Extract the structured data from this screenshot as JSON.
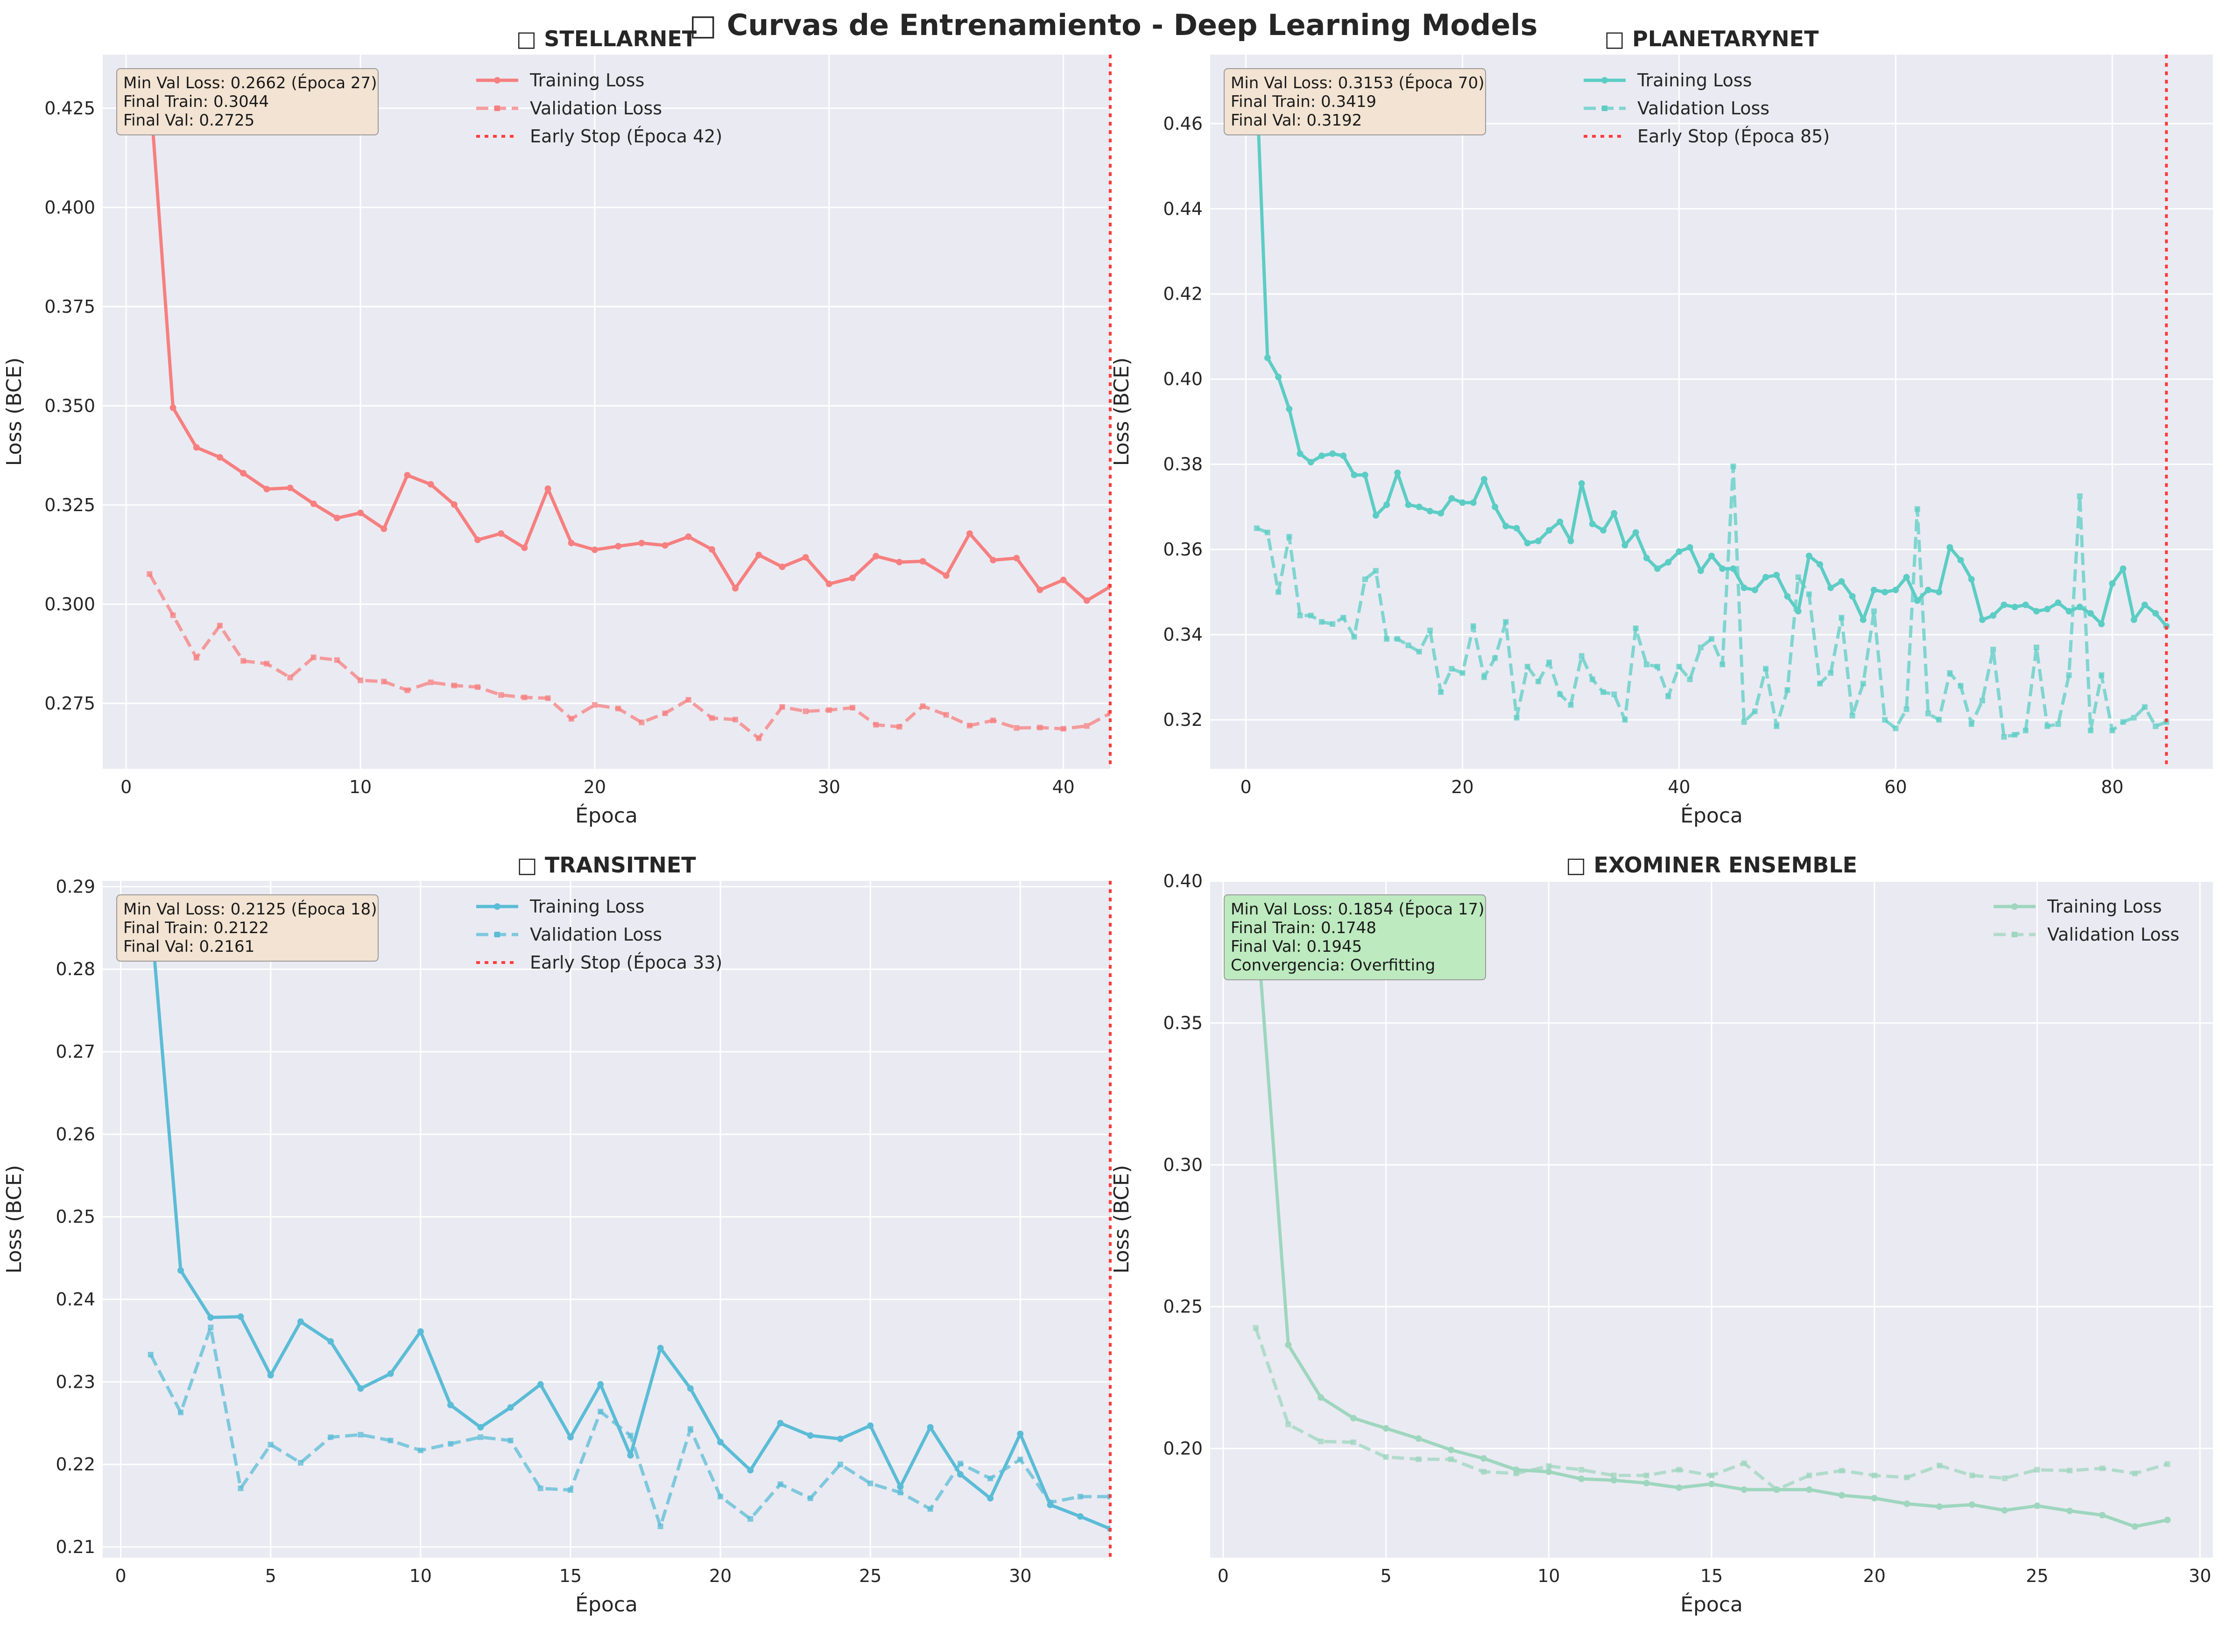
{
  "suptitle": "□ Curvas de Entrenamiento - Deep Learning Models",
  "chart_data": [
    {
      "type": "line",
      "title": "□ STELLARNET",
      "xlabel": "Época",
      "ylabel": "Loss (BCE)",
      "color": "#f77f7f",
      "xlim": [
        -1,
        42
      ],
      "ylim": [
        0.2585,
        0.4385
      ],
      "xticks": [
        0,
        10,
        20,
        30,
        40
      ],
      "xtick_labels": [
        "0",
        "10",
        "20",
        "30",
        "40"
      ],
      "yticks": [
        0.275,
        0.3,
        0.325,
        0.35,
        0.375,
        0.4,
        0.425
      ],
      "ytick_labels": [
        "0.275",
        "0.300",
        "0.325",
        "0.350",
        "0.375",
        "0.400",
        "0.425"
      ],
      "series": [
        {
          "name": "Training Loss",
          "x": [
            1,
            2,
            3,
            4,
            5,
            6,
            7,
            8,
            9,
            10,
            11,
            12,
            13,
            14,
            15,
            16,
            17,
            18,
            19,
            20,
            21,
            22,
            23,
            24,
            25,
            26,
            27,
            28,
            29,
            30,
            31,
            32,
            33,
            34,
            35,
            36,
            37,
            38,
            39,
            40,
            41,
            42
          ],
          "values": [
            0.431,
            0.3495,
            0.3395,
            0.337,
            0.333,
            0.329,
            0.3293,
            0.3253,
            0.3217,
            0.323,
            0.319,
            0.3325,
            0.3302,
            0.3251,
            0.3162,
            0.3178,
            0.3142,
            0.3291,
            0.3154,
            0.3137,
            0.3146,
            0.3154,
            0.3148,
            0.317,
            0.3138,
            0.304,
            0.3124,
            0.3094,
            0.3118,
            0.3051,
            0.3066,
            0.3121,
            0.3106,
            0.3108,
            0.3072,
            0.3178,
            0.3111,
            0.3116,
            0.3036,
            0.3061,
            0.3009,
            0.3044
          ]
        },
        {
          "name": "Validation Loss",
          "x": [
            1,
            2,
            3,
            4,
            5,
            6,
            7,
            8,
            9,
            10,
            11,
            12,
            13,
            14,
            15,
            16,
            17,
            18,
            19,
            20,
            21,
            22,
            23,
            24,
            25,
            26,
            27,
            28,
            29,
            30,
            31,
            32,
            33,
            34,
            35,
            36,
            37,
            38,
            39,
            40,
            41,
            42
          ],
          "values": [
            0.3076,
            0.2972,
            0.2865,
            0.2946,
            0.2857,
            0.285,
            0.2815,
            0.2866,
            0.2859,
            0.2808,
            0.2805,
            0.2783,
            0.2803,
            0.2795,
            0.2791,
            0.2771,
            0.2765,
            0.2763,
            0.2711,
            0.2746,
            0.2737,
            0.2702,
            0.2725,
            0.2759,
            0.2713,
            0.2709,
            0.2662,
            0.2741,
            0.273,
            0.2733,
            0.2739,
            0.2696,
            0.2691,
            0.2743,
            0.2721,
            0.2694,
            0.2707,
            0.2688,
            0.2689,
            0.2686,
            0.2693,
            0.2725
          ]
        }
      ],
      "early_stop": {
        "epoch": 42,
        "label": "Early Stop (Época 42)"
      },
      "legend": "upper-center",
      "annotation": [
        "Min Val Loss: 0.2662 (Época 27)",
        "Final Train: 0.3044",
        "Final Val: 0.2725"
      ],
      "annotation_bg": "#f2e3d2",
      "grid": true
    },
    {
      "type": "line",
      "title": "□ PLANETARYNET",
      "xlabel": "Época",
      "ylabel": "Loss (BCE)",
      "color": "#5ccdc4",
      "xlim": [
        -3.3,
        89.3
      ],
      "ylim": [
        0.3085,
        0.4762
      ],
      "xticks": [
        0,
        20,
        40,
        60,
        80
      ],
      "xtick_labels": [
        "0",
        "20",
        "40",
        "60",
        "80"
      ],
      "yticks": [
        0.32,
        0.34,
        0.36,
        0.38,
        0.4,
        0.42,
        0.44,
        0.46
      ],
      "ytick_labels": [
        "0.32",
        "0.34",
        "0.36",
        "0.38",
        "0.40",
        "0.42",
        "0.44",
        "0.46"
      ],
      "series": [
        {
          "name": "Training Loss",
          "x": [
            1,
            2,
            3,
            4,
            5,
            6,
            7,
            8,
            9,
            10,
            11,
            12,
            13,
            14,
            15,
            16,
            17,
            18,
            19,
            20,
            21,
            22,
            23,
            24,
            25,
            26,
            27,
            28,
            29,
            30,
            31,
            32,
            33,
            34,
            35,
            36,
            37,
            38,
            39,
            40,
            41,
            42,
            43,
            44,
            45,
            46,
            47,
            48,
            49,
            50,
            51,
            52,
            53,
            54,
            55,
            56,
            57,
            58,
            59,
            60,
            61,
            62,
            63,
            64,
            65,
            66,
            67,
            68,
            69,
            70,
            71,
            72,
            73,
            74,
            75,
            76,
            77,
            78,
            79,
            80,
            81,
            82,
            83,
            84,
            85
          ],
          "values": [
            0.469,
            0.405,
            0.4005,
            0.393,
            0.3825,
            0.3805,
            0.382,
            0.3825,
            0.382,
            0.3775,
            0.3775,
            0.368,
            0.3705,
            0.378,
            0.3705,
            0.37,
            0.369,
            0.3685,
            0.372,
            0.371,
            0.371,
            0.3765,
            0.37,
            0.3655,
            0.365,
            0.3615,
            0.362,
            0.3645,
            0.3665,
            0.362,
            0.3755,
            0.366,
            0.3645,
            0.3685,
            0.361,
            0.364,
            0.358,
            0.3555,
            0.357,
            0.3595,
            0.3605,
            0.355,
            0.3585,
            0.3555,
            0.3555,
            0.351,
            0.3505,
            0.3535,
            0.354,
            0.349,
            0.3455,
            0.3585,
            0.3565,
            0.351,
            0.3525,
            0.349,
            0.3435,
            0.3505,
            0.35,
            0.3505,
            0.3535,
            0.348,
            0.3505,
            0.35,
            0.3605,
            0.3575,
            0.353,
            0.3435,
            0.3445,
            0.347,
            0.3465,
            0.347,
            0.3455,
            0.346,
            0.3475,
            0.3455,
            0.3465,
            0.345,
            0.3425,
            0.352,
            0.3555,
            0.3435,
            0.347,
            0.345,
            0.342
          ]
        },
        {
          "name": "Validation Loss",
          "x": [
            1,
            2,
            3,
            4,
            5,
            6,
            7,
            8,
            9,
            10,
            11,
            12,
            13,
            14,
            15,
            16,
            17,
            18,
            19,
            20,
            21,
            22,
            23,
            24,
            25,
            26,
            27,
            28,
            29,
            30,
            31,
            32,
            33,
            34,
            35,
            36,
            37,
            38,
            39,
            40,
            41,
            42,
            43,
            44,
            45,
            46,
            47,
            48,
            49,
            50,
            51,
            52,
            53,
            54,
            55,
            56,
            57,
            58,
            59,
            60,
            61,
            62,
            63,
            64,
            65,
            66,
            67,
            68,
            69,
            70,
            71,
            72,
            73,
            74,
            75,
            76,
            77,
            78,
            79,
            80,
            81,
            82,
            83,
            84,
            85
          ],
          "values": [
            0.365,
            0.364,
            0.35,
            0.363,
            0.3445,
            0.3445,
            0.343,
            0.3425,
            0.344,
            0.3395,
            0.353,
            0.355,
            0.339,
            0.339,
            0.3375,
            0.336,
            0.341,
            0.3265,
            0.332,
            0.331,
            0.342,
            0.33,
            0.3345,
            0.343,
            0.3205,
            0.3325,
            0.329,
            0.3335,
            0.326,
            0.3235,
            0.335,
            0.3295,
            0.3265,
            0.326,
            0.32,
            0.3415,
            0.333,
            0.3325,
            0.3255,
            0.3325,
            0.3295,
            0.337,
            0.339,
            0.333,
            0.3795,
            0.3195,
            0.322,
            0.332,
            0.3185,
            0.327,
            0.3535,
            0.3495,
            0.3285,
            0.331,
            0.344,
            0.321,
            0.3285,
            0.3455,
            0.32,
            0.318,
            0.3225,
            0.3695,
            0.3215,
            0.32,
            0.331,
            0.328,
            0.319,
            0.3245,
            0.3365,
            0.316,
            0.3165,
            0.3175,
            0.337,
            0.3185,
            0.319,
            0.3305,
            0.3725,
            0.3175,
            0.3305,
            0.3175,
            0.3195,
            0.3205,
            0.323,
            0.3185,
            0.3195
          ]
        }
      ],
      "early_stop": {
        "epoch": 85,
        "label": "Early Stop (Época 85)"
      },
      "legend": "upper-center",
      "annotation": [
        "Min Val Loss: 0.3153 (Época 70)",
        "Final Train: 0.3419",
        "Final Val: 0.3192"
      ],
      "annotation_bg": "#f2e3d2",
      "grid": true
    },
    {
      "type": "line",
      "title": "□ TRANSITNET",
      "xlabel": "Época",
      "ylabel": "Loss (BCE)",
      "color": "#5bbcd6",
      "xlim": [
        -0.6,
        33.0
      ],
      "ylim": [
        0.2087,
        0.2907
      ],
      "xticks": [
        0,
        5,
        10,
        15,
        20,
        25,
        30
      ],
      "xtick_labels": [
        "0",
        "5",
        "10",
        "15",
        "20",
        "25",
        "30"
      ],
      "yticks": [
        0.21,
        0.22,
        0.23,
        0.24,
        0.25,
        0.26,
        0.27,
        0.28,
        0.29
      ],
      "ytick_labels": [
        "0.21",
        "0.22",
        "0.23",
        "0.24",
        "0.25",
        "0.26",
        "0.27",
        "0.28",
        "0.29"
      ],
      "series": [
        {
          "name": "Training Loss",
          "x": [
            1,
            2,
            3,
            4,
            5,
            6,
            7,
            8,
            9,
            10,
            11,
            12,
            13,
            14,
            15,
            16,
            17,
            18,
            19,
            20,
            21,
            22,
            23,
            24,
            25,
            26,
            27,
            28,
            29,
            30,
            31,
            32,
            33
          ],
          "values": [
            0.2868,
            0.2435,
            0.2378,
            0.2379,
            0.2308,
            0.2373,
            0.2349,
            0.2292,
            0.231,
            0.2361,
            0.2272,
            0.2245,
            0.2269,
            0.2297,
            0.2233,
            0.2297,
            0.2211,
            0.2341,
            0.2292,
            0.2227,
            0.2193,
            0.225,
            0.2235,
            0.2231,
            0.2247,
            0.2173,
            0.2245,
            0.2188,
            0.2159,
            0.2237,
            0.2151,
            0.2137,
            0.2122
          ]
        },
        {
          "name": "Validation Loss",
          "x": [
            1,
            2,
            3,
            4,
            5,
            6,
            7,
            8,
            9,
            10,
            11,
            12,
            13,
            14,
            15,
            16,
            17,
            18,
            19,
            20,
            21,
            22,
            23,
            24,
            25,
            26,
            27,
            28,
            29,
            30,
            31,
            32,
            33
          ],
          "values": [
            0.2333,
            0.2263,
            0.2366,
            0.2171,
            0.2224,
            0.2202,
            0.2233,
            0.2236,
            0.2229,
            0.2217,
            0.2225,
            0.2233,
            0.2229,
            0.2171,
            0.2169,
            0.2264,
            0.2235,
            0.2125,
            0.2243,
            0.2161,
            0.2134,
            0.2176,
            0.2159,
            0.22,
            0.2177,
            0.2166,
            0.2146,
            0.2201,
            0.2183,
            0.2206,
            0.2154,
            0.2161,
            0.2161
          ]
        }
      ],
      "early_stop": {
        "epoch": 33,
        "label": "Early Stop (Época 33)"
      },
      "legend": "upper-center",
      "annotation": [
        "Min Val Loss: 0.2125 (Época 18)",
        "Final Train: 0.2122",
        "Final Val: 0.2161"
      ],
      "annotation_bg": "#f2e3d2",
      "grid": true
    },
    {
      "type": "line",
      "title": "□ EXOMINER ENSEMBLE",
      "xlabel": "Época",
      "ylabel": "Loss (BCE)",
      "color": "#9ed6be",
      "xlim": [
        -0.4,
        30.4
      ],
      "ylim": [
        0.1615,
        0.4001
      ],
      "xticks": [
        0,
        5,
        10,
        15,
        20,
        25,
        30
      ],
      "xtick_labels": [
        "0",
        "5",
        "10",
        "15",
        "20",
        "25",
        "30"
      ],
      "yticks": [
        0.2,
        0.25,
        0.3,
        0.35,
        0.4
      ],
      "ytick_labels": [
        "0.20",
        "0.25",
        "0.30",
        "0.35",
        "0.40"
      ],
      "series": [
        {
          "name": "Training Loss",
          "x": [
            1,
            2,
            3,
            4,
            5,
            6,
            7,
            8,
            9,
            10,
            11,
            12,
            13,
            14,
            15,
            16,
            17,
            18,
            19,
            20,
            21,
            22,
            23,
            24,
            25,
            26,
            27,
            28,
            29
          ],
          "values": [
            0.39,
            0.2365,
            0.218,
            0.2107,
            0.2071,
            0.2035,
            0.1995,
            0.1965,
            0.1925,
            0.1918,
            0.1893,
            0.1888,
            0.1878,
            0.1862,
            0.1875,
            0.1855,
            0.1855,
            0.1855,
            0.1835,
            0.1825,
            0.1805,
            0.1795,
            0.1802,
            0.1782,
            0.1798,
            0.178,
            0.1765,
            0.1725,
            0.1748
          ]
        },
        {
          "name": "Validation Loss",
          "x": [
            1,
            2,
            3,
            4,
            5,
            6,
            7,
            8,
            9,
            10,
            11,
            12,
            13,
            14,
            15,
            16,
            17,
            18,
            19,
            20,
            21,
            22,
            23,
            24,
            25,
            26,
            27,
            28,
            29
          ],
          "values": [
            0.2425,
            0.2085,
            0.2025,
            0.2022,
            0.197,
            0.1962,
            0.1962,
            0.1918,
            0.1912,
            0.1938,
            0.1925,
            0.1905,
            0.1905,
            0.1925,
            0.1905,
            0.1948,
            0.1855,
            0.1905,
            0.1922,
            0.1905,
            0.1898,
            0.194,
            0.1905,
            0.1895,
            0.1925,
            0.1922,
            0.193,
            0.1912,
            0.1945
          ]
        }
      ],
      "early_stop": null,
      "legend": "upper-right",
      "annotation": [
        "Min Val Loss: 0.1854 (Época 17)",
        "Final Train: 0.1748",
        "Final Val: 0.1945",
        "Convergencia: Overfitting"
      ],
      "annotation_bg": "#bdeabf",
      "grid": true
    }
  ]
}
